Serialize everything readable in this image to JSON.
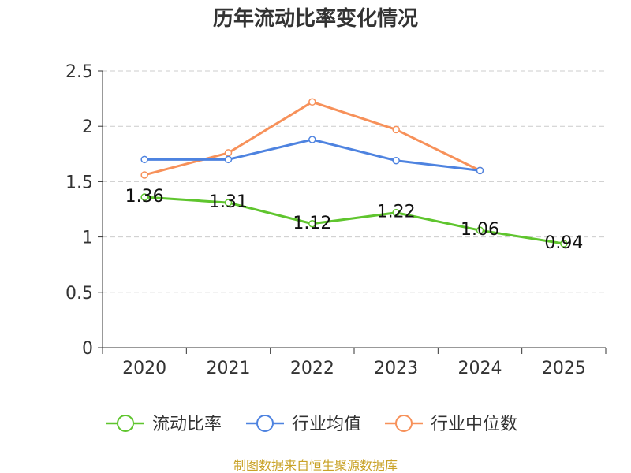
{
  "chart_data": {
    "type": "line",
    "title": "历年流动比率变化情况",
    "categories": [
      "2020",
      "2021",
      "2022",
      "2023",
      "2024",
      "2025"
    ],
    "yticks": [
      "0",
      "0.5",
      "1",
      "1.5",
      "2",
      "2.5"
    ],
    "ylim": [
      0,
      2.5
    ],
    "grid": true,
    "legend_position": "bottom",
    "series": [
      {
        "name": "流动比率",
        "color": "#5fc52e",
        "values": [
          1.36,
          1.31,
          1.12,
          1.22,
          1.06,
          0.94
        ],
        "labels": [
          "1.36",
          "1.31",
          "1.12",
          "1.22",
          "1.06",
          "0.94"
        ]
      },
      {
        "name": "行业均值",
        "color": "#4e83e0",
        "values": [
          1.7,
          1.7,
          1.88,
          1.69,
          1.6,
          null
        ]
      },
      {
        "name": "行业中位数",
        "color": "#f7915a",
        "values": [
          1.56,
          1.76,
          2.22,
          1.97,
          1.6,
          null
        ]
      }
    ],
    "source": "制图数据来自恒生聚源数据库"
  }
}
